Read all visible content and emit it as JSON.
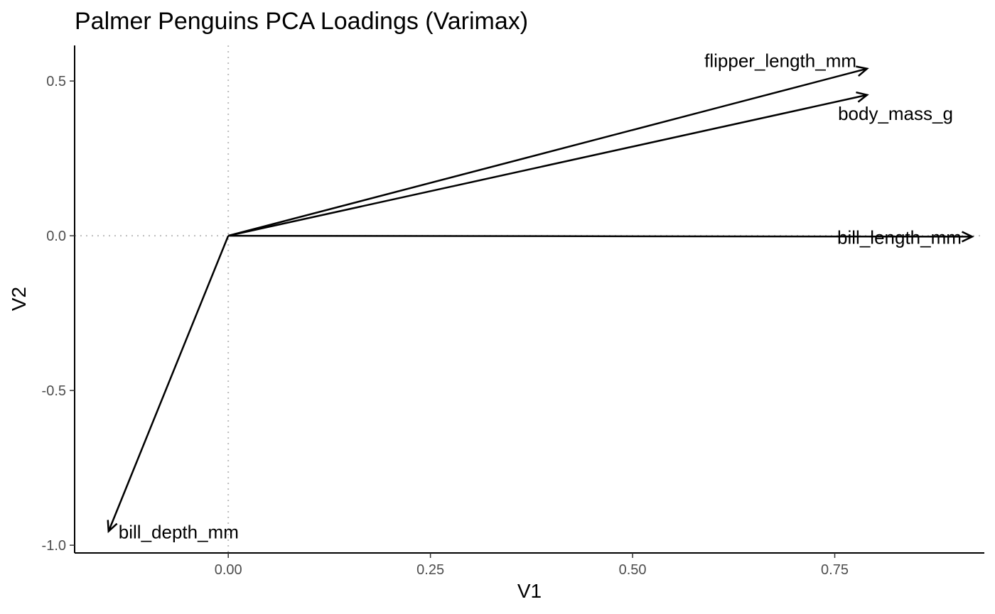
{
  "chart_data": {
    "type": "vector",
    "title": "Palmer Penguins PCA Loadings (Varimax)",
    "xlabel": "V1",
    "ylabel": "V2",
    "xlim": [
      -0.19,
      0.935
    ],
    "ylim": [
      -1.025,
      0.615
    ],
    "x_ticks": [
      0,
      0.25,
      0.5,
      0.75
    ],
    "x_tick_labels": [
      "0.00",
      "0.25",
      "0.50",
      "0.75"
    ],
    "y_ticks": [
      -1,
      -0.5,
      0,
      0.5
    ],
    "y_tick_labels": [
      "-1.0",
      "-0.5",
      "0.0",
      "0.5"
    ],
    "reference_lines": {
      "x": 0,
      "y": 0
    },
    "grid": false,
    "legend": "none",
    "vectors": [
      {
        "name": "flipper_length_mm",
        "x": 0.79,
        "y": 0.54,
        "label_side": "left",
        "label_pos": "above"
      },
      {
        "name": "body_mass_g",
        "x": 0.79,
        "y": 0.455,
        "label_side": "middle",
        "label_pos": "below"
      },
      {
        "name": "bill_length_mm",
        "x": 0.92,
        "y": -0.003,
        "label_side": "left",
        "label_pos": "center"
      },
      {
        "name": "bill_depth_mm",
        "x": -0.148,
        "y": -0.955,
        "label_side": "right",
        "label_pos": "center"
      }
    ]
  }
}
